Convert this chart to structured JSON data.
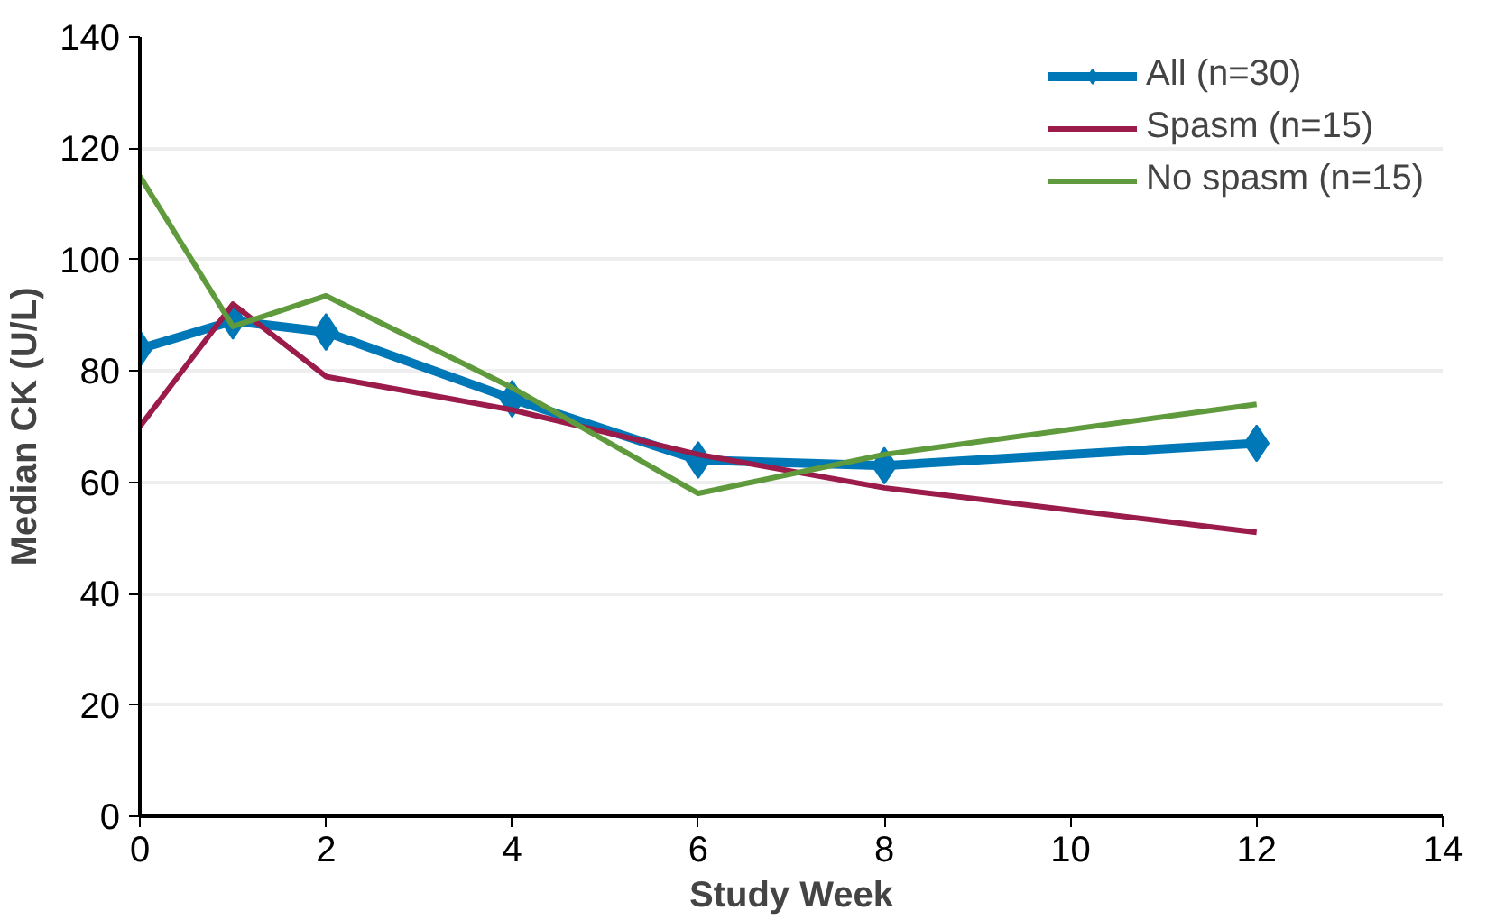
{
  "chart_data": {
    "type": "line",
    "xlabel": "Study Week",
    "ylabel": "Median CK (U/L)",
    "x": [
      0,
      1,
      2,
      4,
      6,
      8,
      12
    ],
    "xlim": [
      0,
      14
    ],
    "xticks": [
      0,
      2,
      4,
      6,
      8,
      10,
      12,
      14
    ],
    "ylim": [
      0,
      140
    ],
    "yticks": [
      0,
      20,
      40,
      60,
      80,
      100,
      120,
      140
    ],
    "grid": "y",
    "legend": "top right",
    "series": [
      {
        "name": "All (n=30)",
        "color": "#0077b6",
        "values": [
          84,
          89,
          87,
          75,
          64,
          63,
          67
        ],
        "marker": "diamond"
      },
      {
        "name": "Spasm (n=15)",
        "color": "#9b1b4a",
        "values": [
          70,
          92,
          79,
          73,
          65,
          59,
          51
        ],
        "marker": "none"
      },
      {
        "name": "No spasm (n=15)",
        "color": "#5f9a3c",
        "values": [
          115,
          88,
          93.5,
          77,
          58,
          65,
          74
        ],
        "marker": "none"
      }
    ]
  }
}
